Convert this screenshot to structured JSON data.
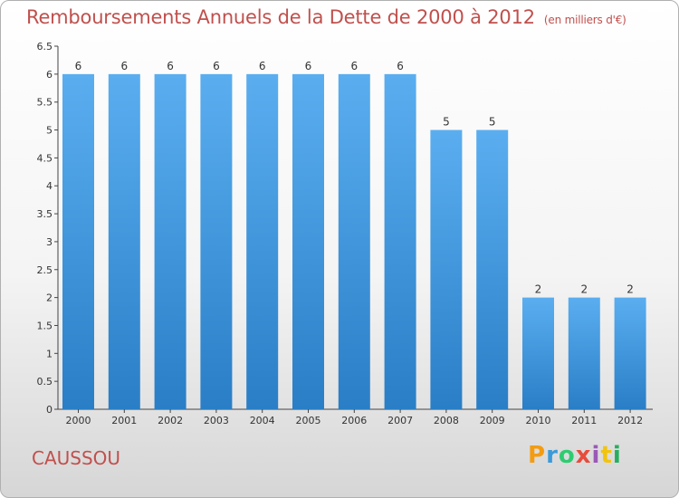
{
  "title": "Remboursements Annuels de la Dette de 2000 à 2012",
  "unit": "(en milliers d'€)",
  "commune": "CAUSSOU",
  "logo": {
    "letters": [
      "P",
      "r",
      "o",
      "x",
      "i",
      "t",
      "i"
    ],
    "colors": [
      "#f39c12",
      "#3a9ad9",
      "#2ecc71",
      "#e74c3c",
      "#9b59b6",
      "#f1c40f",
      "#27ae60"
    ]
  },
  "chart_data": {
    "type": "bar",
    "title": "Remboursements Annuels de la Dette de 2000 à 2012",
    "xlabel": "",
    "ylabel": "",
    "categories": [
      "2000",
      "2001",
      "2002",
      "2003",
      "2004",
      "2005",
      "2006",
      "2007",
      "2008",
      "2009",
      "2010",
      "2011",
      "2012"
    ],
    "values": [
      6,
      6,
      6,
      6,
      6,
      6,
      6,
      6,
      5,
      5,
      2,
      2,
      2
    ],
    "ylim": [
      0,
      6.5
    ],
    "yticks": [
      "0",
      "0.5",
      "1",
      "1.5",
      "2",
      "2.5",
      "3",
      "3.5",
      "4",
      "4.5",
      "5",
      "5.5",
      "6",
      "6.5"
    ],
    "grid": false,
    "bar_color": "#3a8fd6"
  }
}
